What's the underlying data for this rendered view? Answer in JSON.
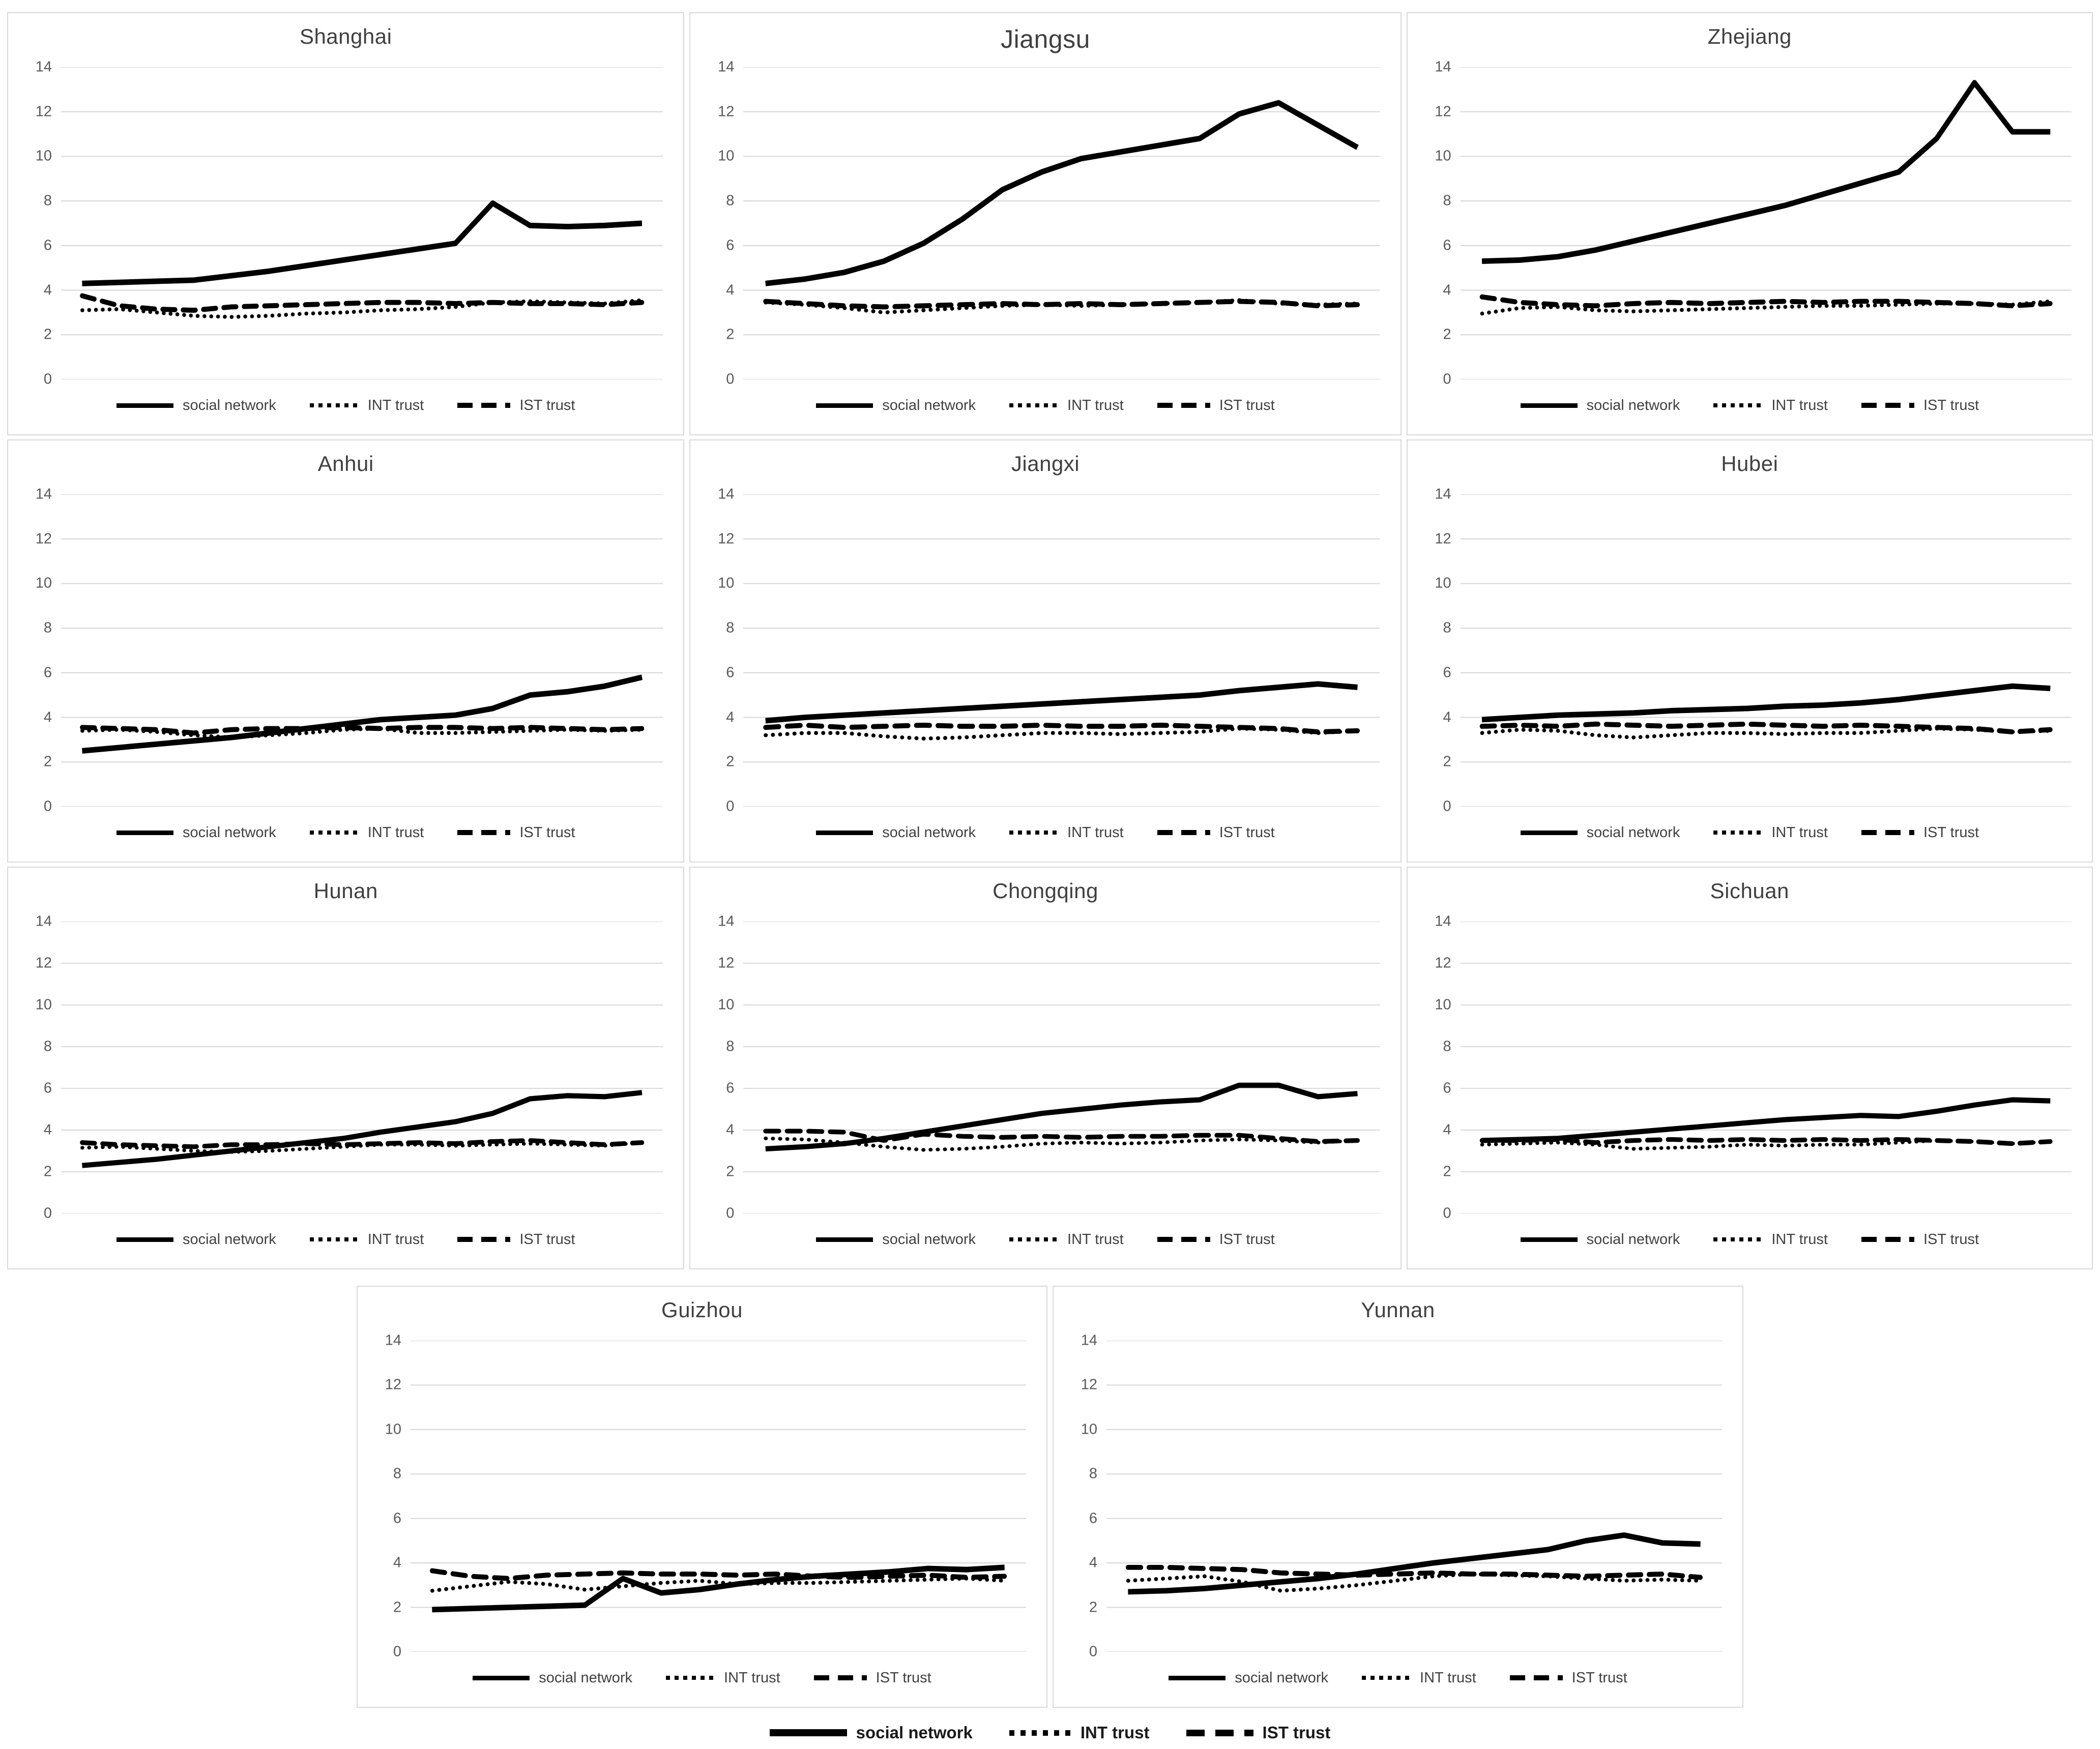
{
  "series_labels": [
    "social network",
    "INT trust",
    "IST trust"
  ],
  "axis": {
    "y_ticks": [
      0,
      2,
      4,
      6,
      8,
      10,
      12,
      14
    ],
    "y_max": 14
  },
  "colors": {
    "line": "#000000",
    "gridline": "#d9d9d9",
    "tick_label": "#595959",
    "title": "#404040",
    "panel_border": "#d9d9d9",
    "background": "#ffffff"
  },
  "chart_data": [
    {
      "type": "line",
      "title": "Shanghai",
      "ylim": [
        0,
        14
      ],
      "grid": true,
      "legend_position": "bottom",
      "series": [
        {
          "name": "social network",
          "style": "solid",
          "values": [
            4.3,
            4.35,
            4.4,
            4.45,
            4.65,
            4.85,
            5.1,
            5.35,
            5.6,
            5.85,
            6.1,
            7.9,
            6.9,
            6.85,
            6.9,
            7.0
          ]
        },
        {
          "name": "INT trust",
          "style": "dotted",
          "values": [
            3.1,
            3.15,
            3.0,
            2.85,
            2.8,
            2.85,
            2.95,
            3.0,
            3.1,
            3.15,
            3.25,
            3.45,
            3.5,
            3.45,
            3.4,
            3.55
          ]
        },
        {
          "name": "IST trust",
          "style": "dashed",
          "values": [
            3.75,
            3.3,
            3.15,
            3.1,
            3.25,
            3.3,
            3.35,
            3.4,
            3.45,
            3.45,
            3.4,
            3.45,
            3.4,
            3.4,
            3.35,
            3.45
          ]
        }
      ]
    },
    {
      "type": "line",
      "title": "Jiangsu",
      "ylim": [
        0,
        14
      ],
      "grid": true,
      "legend_position": "bottom",
      "series": [
        {
          "name": "social network",
          "style": "solid",
          "values": [
            4.3,
            4.5,
            4.8,
            5.3,
            6.1,
            7.2,
            8.5,
            9.3,
            9.9,
            10.2,
            10.5,
            10.8,
            11.9,
            12.4,
            11.4,
            10.4
          ]
        },
        {
          "name": "INT trust",
          "style": "dotted",
          "values": [
            3.45,
            3.35,
            3.2,
            3.0,
            3.1,
            3.2,
            3.3,
            3.35,
            3.3,
            3.35,
            3.4,
            3.45,
            3.55,
            3.4,
            3.35,
            3.4
          ]
        },
        {
          "name": "IST trust",
          "style": "dashed",
          "values": [
            3.5,
            3.4,
            3.3,
            3.25,
            3.3,
            3.35,
            3.4,
            3.35,
            3.4,
            3.35,
            3.4,
            3.45,
            3.5,
            3.45,
            3.3,
            3.35
          ]
        }
      ]
    },
    {
      "type": "line",
      "title": "Zhejiang",
      "ylim": [
        0,
        14
      ],
      "grid": true,
      "legend_position": "bottom",
      "series": [
        {
          "name": "social network",
          "style": "solid",
          "values": [
            5.3,
            5.35,
            5.5,
            5.8,
            6.2,
            6.6,
            7.0,
            7.4,
            7.8,
            8.3,
            8.8,
            9.3,
            10.8,
            13.3,
            11.1,
            11.1
          ]
        },
        {
          "name": "INT trust",
          "style": "dotted",
          "values": [
            2.95,
            3.2,
            3.25,
            3.1,
            3.05,
            3.1,
            3.15,
            3.2,
            3.25,
            3.3,
            3.3,
            3.35,
            3.4,
            3.4,
            3.35,
            3.5
          ]
        },
        {
          "name": "IST trust",
          "style": "dashed",
          "values": [
            3.7,
            3.45,
            3.35,
            3.3,
            3.4,
            3.45,
            3.4,
            3.45,
            3.5,
            3.45,
            3.5,
            3.5,
            3.45,
            3.4,
            3.3,
            3.4
          ]
        }
      ]
    },
    {
      "type": "line",
      "title": "Anhui",
      "ylim": [
        0,
        14
      ],
      "grid": true,
      "legend_position": "bottom",
      "series": [
        {
          "name": "social network",
          "style": "solid",
          "values": [
            2.5,
            2.65,
            2.8,
            2.95,
            3.1,
            3.3,
            3.5,
            3.7,
            3.9,
            4.0,
            4.1,
            4.4,
            5.0,
            5.15,
            5.4,
            5.8
          ]
        },
        {
          "name": "INT trust",
          "style": "dotted",
          "values": [
            3.4,
            3.45,
            3.35,
            3.2,
            3.1,
            3.2,
            3.3,
            3.45,
            3.5,
            3.3,
            3.3,
            3.35,
            3.4,
            3.45,
            3.4,
            3.45
          ]
        },
        {
          "name": "IST trust",
          "style": "dashed",
          "values": [
            3.55,
            3.5,
            3.45,
            3.3,
            3.45,
            3.5,
            3.5,
            3.55,
            3.5,
            3.55,
            3.55,
            3.5,
            3.55,
            3.5,
            3.45,
            3.5
          ]
        }
      ]
    },
    {
      "type": "line",
      "title": "Jiangxi",
      "ylim": [
        0,
        14
      ],
      "grid": true,
      "legend_position": "bottom",
      "series": [
        {
          "name": "social network",
          "style": "solid",
          "values": [
            3.85,
            4.0,
            4.1,
            4.2,
            4.3,
            4.4,
            4.5,
            4.6,
            4.7,
            4.8,
            4.9,
            5.0,
            5.2,
            5.35,
            5.5,
            5.35
          ]
        },
        {
          "name": "INT trust",
          "style": "dotted",
          "values": [
            3.2,
            3.3,
            3.3,
            3.15,
            3.05,
            3.1,
            3.2,
            3.3,
            3.3,
            3.25,
            3.3,
            3.35,
            3.5,
            3.45,
            3.3,
            3.4
          ]
        },
        {
          "name": "IST trust",
          "style": "dashed",
          "values": [
            3.55,
            3.65,
            3.55,
            3.6,
            3.65,
            3.6,
            3.6,
            3.65,
            3.6,
            3.6,
            3.65,
            3.6,
            3.55,
            3.5,
            3.35,
            3.4
          ]
        }
      ]
    },
    {
      "type": "line",
      "title": "Hubei",
      "ylim": [
        0,
        14
      ],
      "grid": true,
      "legend_position": "bottom",
      "series": [
        {
          "name": "social network",
          "style": "solid",
          "values": [
            3.9,
            4.0,
            4.1,
            4.15,
            4.2,
            4.3,
            4.35,
            4.4,
            4.5,
            4.55,
            4.65,
            4.8,
            5.0,
            5.2,
            5.4,
            5.3
          ]
        },
        {
          "name": "INT trust",
          "style": "dotted",
          "values": [
            3.3,
            3.45,
            3.4,
            3.2,
            3.1,
            3.2,
            3.3,
            3.3,
            3.25,
            3.3,
            3.3,
            3.4,
            3.5,
            3.45,
            3.35,
            3.4
          ]
        },
        {
          "name": "IST trust",
          "style": "dashed",
          "values": [
            3.6,
            3.65,
            3.6,
            3.7,
            3.65,
            3.6,
            3.65,
            3.7,
            3.65,
            3.6,
            3.65,
            3.6,
            3.55,
            3.5,
            3.35,
            3.45
          ]
        }
      ]
    },
    {
      "type": "line",
      "title": "Hunan",
      "ylim": [
        0,
        14
      ],
      "grid": true,
      "legend_position": "bottom",
      "series": [
        {
          "name": "social network",
          "style": "solid",
          "values": [
            2.3,
            2.45,
            2.6,
            2.8,
            3.0,
            3.2,
            3.4,
            3.6,
            3.9,
            4.15,
            4.4,
            4.8,
            5.5,
            5.65,
            5.6,
            5.8
          ]
        },
        {
          "name": "INT trust",
          "style": "dotted",
          "values": [
            3.15,
            3.2,
            3.1,
            3.0,
            2.95,
            3.0,
            3.1,
            3.2,
            3.3,
            3.3,
            3.25,
            3.3,
            3.35,
            3.3,
            3.25,
            3.4
          ]
        },
        {
          "name": "IST trust",
          "style": "dashed",
          "values": [
            3.4,
            3.3,
            3.25,
            3.2,
            3.3,
            3.3,
            3.35,
            3.3,
            3.35,
            3.4,
            3.35,
            3.45,
            3.5,
            3.4,
            3.3,
            3.4
          ]
        }
      ]
    },
    {
      "type": "line",
      "title": "Chongqing",
      "ylim": [
        0,
        14
      ],
      "grid": true,
      "legend_position": "bottom",
      "series": [
        {
          "name": "social network",
          "style": "solid",
          "values": [
            3.1,
            3.2,
            3.35,
            3.6,
            3.9,
            4.2,
            4.5,
            4.8,
            5.0,
            5.2,
            5.35,
            5.45,
            6.15,
            6.15,
            5.6,
            5.75
          ]
        },
        {
          "name": "INT trust",
          "style": "dotted",
          "values": [
            3.6,
            3.55,
            3.4,
            3.2,
            3.05,
            3.1,
            3.2,
            3.35,
            3.4,
            3.35,
            3.4,
            3.5,
            3.55,
            3.5,
            3.4,
            3.5
          ]
        },
        {
          "name": "IST trust",
          "style": "dashed",
          "values": [
            3.95,
            3.95,
            3.9,
            3.5,
            3.8,
            3.7,
            3.65,
            3.7,
            3.65,
            3.7,
            3.7,
            3.75,
            3.75,
            3.6,
            3.45,
            3.5
          ]
        }
      ]
    },
    {
      "type": "line",
      "title": "Sichuan",
      "ylim": [
        0,
        14
      ],
      "grid": true,
      "legend_position": "bottom",
      "series": [
        {
          "name": "social network",
          "style": "solid",
          "values": [
            3.5,
            3.55,
            3.6,
            3.75,
            3.9,
            4.05,
            4.2,
            4.35,
            4.5,
            4.6,
            4.7,
            4.65,
            4.9,
            5.2,
            5.45,
            5.4
          ]
        },
        {
          "name": "INT trust",
          "style": "dotted",
          "values": [
            3.3,
            3.35,
            3.4,
            3.3,
            3.1,
            3.15,
            3.2,
            3.3,
            3.25,
            3.3,
            3.3,
            3.4,
            3.5,
            3.45,
            3.35,
            3.45
          ]
        },
        {
          "name": "IST trust",
          "style": "dashed",
          "values": [
            3.5,
            3.5,
            3.55,
            3.4,
            3.5,
            3.55,
            3.5,
            3.55,
            3.5,
            3.55,
            3.5,
            3.55,
            3.5,
            3.45,
            3.35,
            3.45
          ]
        }
      ]
    },
    {
      "type": "line",
      "title": "Guizhou",
      "ylim": [
        0,
        14
      ],
      "grid": true,
      "legend_position": "bottom",
      "series": [
        {
          "name": "social network",
          "style": "solid",
          "values": [
            1.9,
            1.95,
            2.0,
            2.05,
            2.1,
            3.3,
            2.65,
            2.8,
            3.05,
            3.25,
            3.4,
            3.5,
            3.6,
            3.75,
            3.7,
            3.8
          ]
        },
        {
          "name": "INT trust",
          "style": "dotted",
          "values": [
            2.75,
            2.95,
            3.15,
            3.05,
            2.8,
            2.95,
            3.1,
            3.2,
            3.05,
            3.1,
            3.1,
            3.15,
            3.2,
            3.25,
            3.3,
            3.2
          ]
        },
        {
          "name": "IST trust",
          "style": "dashed",
          "values": [
            3.65,
            3.4,
            3.3,
            3.45,
            3.5,
            3.55,
            3.5,
            3.5,
            3.45,
            3.5,
            3.4,
            3.35,
            3.4,
            3.45,
            3.35,
            3.4
          ]
        }
      ]
    },
    {
      "type": "line",
      "title": "Yunnan",
      "ylim": [
        0,
        14
      ],
      "grid": true,
      "legend_position": "bottom",
      "series": [
        {
          "name": "social network",
          "style": "solid",
          "values": [
            2.7,
            2.75,
            2.85,
            3.0,
            3.15,
            3.3,
            3.5,
            3.75,
            4.0,
            4.2,
            4.4,
            4.6,
            5.0,
            5.25,
            4.9,
            4.85
          ]
        },
        {
          "name": "INT trust",
          "style": "dotted",
          "values": [
            3.2,
            3.3,
            3.4,
            3.15,
            2.75,
            2.85,
            3.0,
            3.2,
            3.4,
            3.5,
            3.45,
            3.4,
            3.3,
            3.2,
            3.25,
            3.2
          ]
        },
        {
          "name": "IST trust",
          "style": "dashed",
          "values": [
            3.8,
            3.8,
            3.75,
            3.7,
            3.55,
            3.5,
            3.45,
            3.5,
            3.55,
            3.5,
            3.5,
            3.45,
            3.4,
            3.45,
            3.5,
            3.35
          ]
        }
      ]
    }
  ]
}
